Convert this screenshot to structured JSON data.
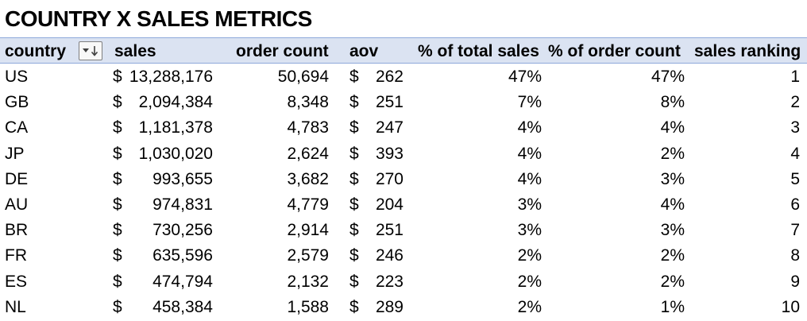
{
  "title": "COUNTRY X SALES METRICS",
  "header": {
    "country": "country",
    "sales": "sales",
    "order_count": "order count",
    "aov": "aov",
    "pct_total_sales": "% of total sales",
    "pct_order_count": "% of  order count",
    "sales_ranking": "sales ranking",
    "filter_icon": "sort-descending-filter-icon"
  },
  "currency_symbol": "$",
  "rows": [
    {
      "country": "US",
      "sales": "13,288,176",
      "order_count": "50,694",
      "aov": "262",
      "pct_sales": "47%",
      "pct_orders": "47%",
      "rank": "1"
    },
    {
      "country": "GB",
      "sales": "2,094,384",
      "order_count": "8,348",
      "aov": "251",
      "pct_sales": "7%",
      "pct_orders": "8%",
      "rank": "2"
    },
    {
      "country": "CA",
      "sales": "1,181,378",
      "order_count": "4,783",
      "aov": "247",
      "pct_sales": "4%",
      "pct_orders": "4%",
      "rank": "3"
    },
    {
      "country": "JP",
      "sales": "1,030,020",
      "order_count": "2,624",
      "aov": "393",
      "pct_sales": "4%",
      "pct_orders": "2%",
      "rank": "4"
    },
    {
      "country": "DE",
      "sales": "993,655",
      "order_count": "3,682",
      "aov": "270",
      "pct_sales": "4%",
      "pct_orders": "3%",
      "rank": "5"
    },
    {
      "country": "AU",
      "sales": "974,831",
      "order_count": "4,779",
      "aov": "204",
      "pct_sales": "3%",
      "pct_orders": "4%",
      "rank": "6"
    },
    {
      "country": "BR",
      "sales": "730,256",
      "order_count": "2,914",
      "aov": "251",
      "pct_sales": "3%",
      "pct_orders": "3%",
      "rank": "7"
    },
    {
      "country": "FR",
      "sales": "635,596",
      "order_count": "2,579",
      "aov": "246",
      "pct_sales": "2%",
      "pct_orders": "2%",
      "rank": "8"
    },
    {
      "country": "ES",
      "sales": "474,794",
      "order_count": "2,132",
      "aov": "223",
      "pct_sales": "2%",
      "pct_orders": "2%",
      "rank": "9"
    },
    {
      "country": "NL",
      "sales": "458,384",
      "order_count": "1,588",
      "aov": "289",
      "pct_sales": "2%",
      "pct_orders": "1%",
      "rank": "10"
    }
  ],
  "colors": {
    "header_fill": "#dbe3f2",
    "header_border": "#8ea9db"
  }
}
